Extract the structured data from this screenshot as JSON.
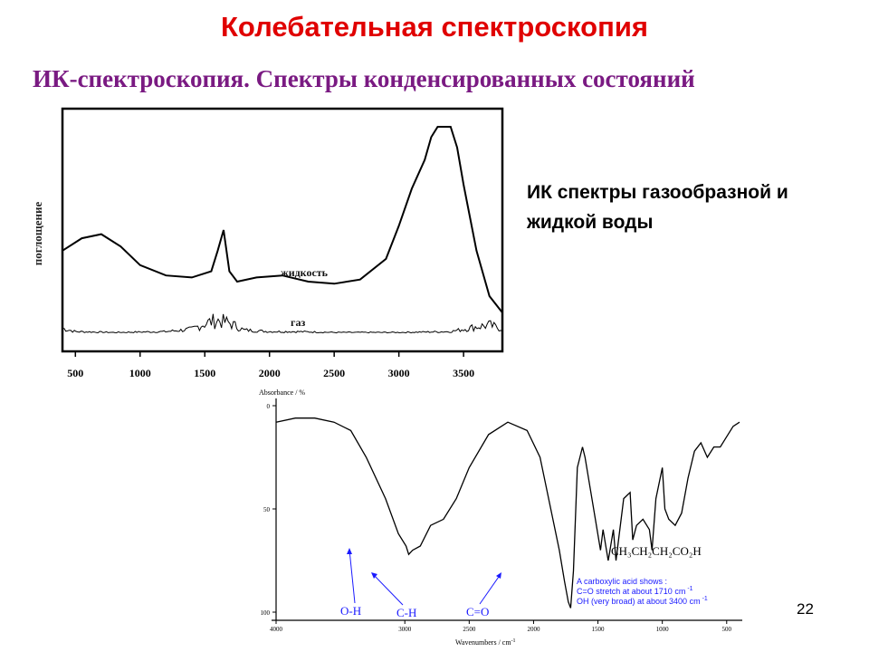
{
  "slide": {
    "title": "Колебательная спектроскопия",
    "subtitle": "ИК-спектроскопия. Спектры конденсированных состояний",
    "caption_line1": "ИК спектры газообразной и",
    "caption_line2": "жидкой воды",
    "page_number": "22"
  },
  "colors": {
    "title": "#e00000",
    "subtitle": "#7a1a82",
    "annotation": "#1a1aff"
  },
  "water_chart": {
    "ylabel": "поглощение",
    "x_ticks": [
      "500",
      "1000",
      "1500",
      "2000",
      "2500",
      "3000",
      "3500"
    ],
    "label_liquid": "жидкость",
    "label_gas": "газ"
  },
  "acid_chart": {
    "ylabel": "Absorbance / %",
    "xlabel": "Wavenumbers / cm",
    "xlabel_sup": "-1",
    "y_ticks": [
      "0",
      "50",
      "100"
    ],
    "x_ticks": [
      "4000",
      "3000",
      "2500",
      "2000",
      "1500",
      "1000",
      "500"
    ],
    "formula": "CH₃CH₂CH₂CO₂H",
    "note_line1": "A carboxylic acid shows :",
    "note_line2": "C=O stretch at about 1710 cm",
    "note_line2_sup": "-1",
    "note_line3": "OH (very broad) at about 3400 cm",
    "note_line3_sup": "-1",
    "label_oh": "O-H",
    "label_ch": "C-H",
    "label_co": "C=O"
  },
  "chart_data": [
    {
      "type": "line",
      "ylabel": "поглощение",
      "xlim": [
        400,
        3800
      ],
      "x_ticks": [
        500,
        1000,
        1500,
        2000,
        2500,
        3000,
        3500
      ],
      "series": [
        {
          "name": "жидкость",
          "x": [
            400,
            550,
            700,
            850,
            1000,
            1200,
            1400,
            1550,
            1600,
            1645,
            1690,
            1750,
            1900,
            2100,
            2300,
            2500,
            2700,
            2900,
            3000,
            3100,
            3200,
            3250,
            3300,
            3400,
            3450,
            3500,
            3600,
            3700,
            3800
          ],
          "y": [
            0.4,
            0.46,
            0.48,
            0.42,
            0.33,
            0.28,
            0.27,
            0.3,
            0.4,
            0.5,
            0.3,
            0.25,
            0.27,
            0.28,
            0.25,
            0.24,
            0.26,
            0.36,
            0.52,
            0.7,
            0.84,
            0.95,
            1.0,
            1.0,
            0.9,
            0.72,
            0.4,
            0.18,
            0.1
          ]
        },
        {
          "name": "газ",
          "x": [
            400,
            500,
            800,
            1200,
            1400,
            1500,
            1595,
            1700,
            1800,
            2000,
            2200,
            2500,
            3000,
            3400,
            3600,
            3700,
            3800
          ],
          "y": [
            0.06,
            0.02,
            0.01,
            0.02,
            0.05,
            0.12,
            0.16,
            0.12,
            0.04,
            0.02,
            0.02,
            0.01,
            0.01,
            0.02,
            0.08,
            0.1,
            0.05
          ]
        }
      ]
    },
    {
      "type": "line",
      "ylabel": "Absorbance / %",
      "xlabel": "Wavenumbers / cm-1",
      "xlim": [
        4000,
        400
      ],
      "ylim": [
        0,
        100
      ],
      "y_ticks": [
        0,
        50,
        100
      ],
      "x_ticks": [
        4000,
        3000,
        2500,
        2000,
        1500,
        1000,
        500
      ],
      "series": [
        {
          "name": "CH₃CH₂CH₂CO₂H",
          "x": [
            4000,
            3850,
            3700,
            3550,
            3420,
            3300,
            3150,
            3050,
            2990,
            2970,
            2940,
            2880,
            2800,
            2700,
            2600,
            2500,
            2350,
            2200,
            2050,
            1950,
            1850,
            1800,
            1760,
            1730,
            1712,
            1690,
            1660,
            1620,
            1600,
            1560,
            1520,
            1480,
            1460,
            1420,
            1412,
            1380,
            1360,
            1300,
            1250,
            1230,
            1200,
            1150,
            1100,
            1080,
            1050,
            1000,
            980,
            950,
            900,
            850,
            800,
            750,
            700,
            650,
            600,
            550,
            500,
            450,
            400
          ],
          "y": [
            8,
            6,
            6,
            8,
            12,
            25,
            45,
            62,
            68,
            72,
            70,
            68,
            58,
            55,
            45,
            30,
            14,
            8,
            12,
            25,
            55,
            70,
            85,
            95,
            98,
            80,
            30,
            20,
            25,
            40,
            55,
            70,
            60,
            75,
            72,
            60,
            75,
            45,
            42,
            65,
            58,
            55,
            60,
            70,
            45,
            30,
            50,
            55,
            58,
            52,
            35,
            22,
            18,
            25,
            20,
            20,
            15,
            10,
            8
          ]
        }
      ]
    }
  ]
}
